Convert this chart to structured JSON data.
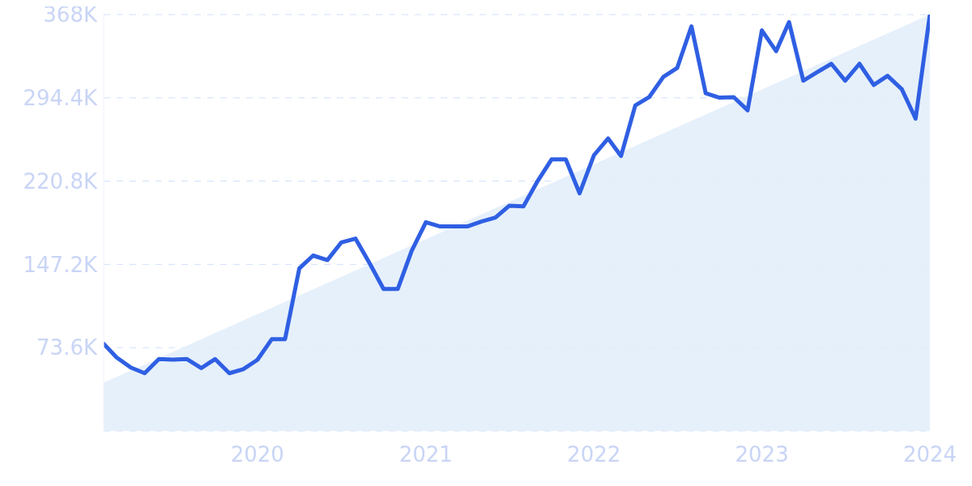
{
  "chart_data": {
    "type": "line",
    "x": [
      "2019-02",
      "2019-03",
      "2019-04",
      "2019-05",
      "2019-06",
      "2019-07",
      "2019-08",
      "2019-09",
      "2019-10",
      "2019-11",
      "2019-12",
      "2020-01",
      "2020-02",
      "2020-03",
      "2020-04",
      "2020-05",
      "2020-06",
      "2020-07",
      "2020-08",
      "2020-09",
      "2020-10",
      "2020-11",
      "2020-12",
      "2021-01",
      "2021-02",
      "2021-03",
      "2021-04",
      "2021-05",
      "2021-06",
      "2021-07",
      "2021-08",
      "2021-09",
      "2021-10",
      "2021-11",
      "2021-12",
      "2022-01",
      "2022-02",
      "2022-03",
      "2022-04",
      "2022-05",
      "2022-06",
      "2022-07",
      "2022-08",
      "2022-09",
      "2022-10",
      "2022-11",
      "2022-12",
      "2023-01",
      "2023-02",
      "2023-03",
      "2023-04",
      "2023-05",
      "2023-06",
      "2023-07",
      "2023-08",
      "2023-09",
      "2023-10",
      "2023-11",
      "2023-12",
      "2024-01"
    ],
    "series": [
      {
        "type": "area",
        "color": "#e3eefb",
        "x": [
          "2019-02",
          "2024-01"
        ],
        "values": [
          42600,
          368000
        ]
      },
      {
        "type": "line",
        "color": "#2f5fe3",
        "values": [
          77000,
          65000,
          56000,
          51000,
          63500,
          63000,
          63500,
          55500,
          63500,
          51000,
          54500,
          62800,
          81000,
          81000,
          143600,
          155000,
          151000,
          166500,
          170000,
          148000,
          125500,
          125500,
          159000,
          184500,
          180700,
          180700,
          180700,
          185000,
          188600,
          199000,
          198500,
          221000,
          240000,
          240000,
          210000,
          243600,
          258500,
          243000,
          287700,
          295000,
          313000,
          320800,
          357600,
          298400,
          294600,
          295000,
          283400,
          354000,
          335700,
          361300,
          309600,
          317000,
          324500,
          309600,
          324500,
          305800,
          313900,
          302000,
          276000,
          368000
        ]
      }
    ],
    "xlim": [
      "2019-02",
      "2024-01"
    ],
    "xticks": [
      "2020",
      "2021",
      "2022",
      "2023",
      "2024"
    ],
    "ylim": [
      0,
      368000
    ],
    "yticks": [
      {
        "value": 73600,
        "label": "73.6K"
      },
      {
        "value": 147200,
        "label": "147.2K"
      },
      {
        "value": 220800,
        "label": "220.8K"
      },
      {
        "value": 294400,
        "label": "294.4K"
      },
      {
        "value": 368000,
        "label": "368K"
      }
    ],
    "grid": "y"
  }
}
